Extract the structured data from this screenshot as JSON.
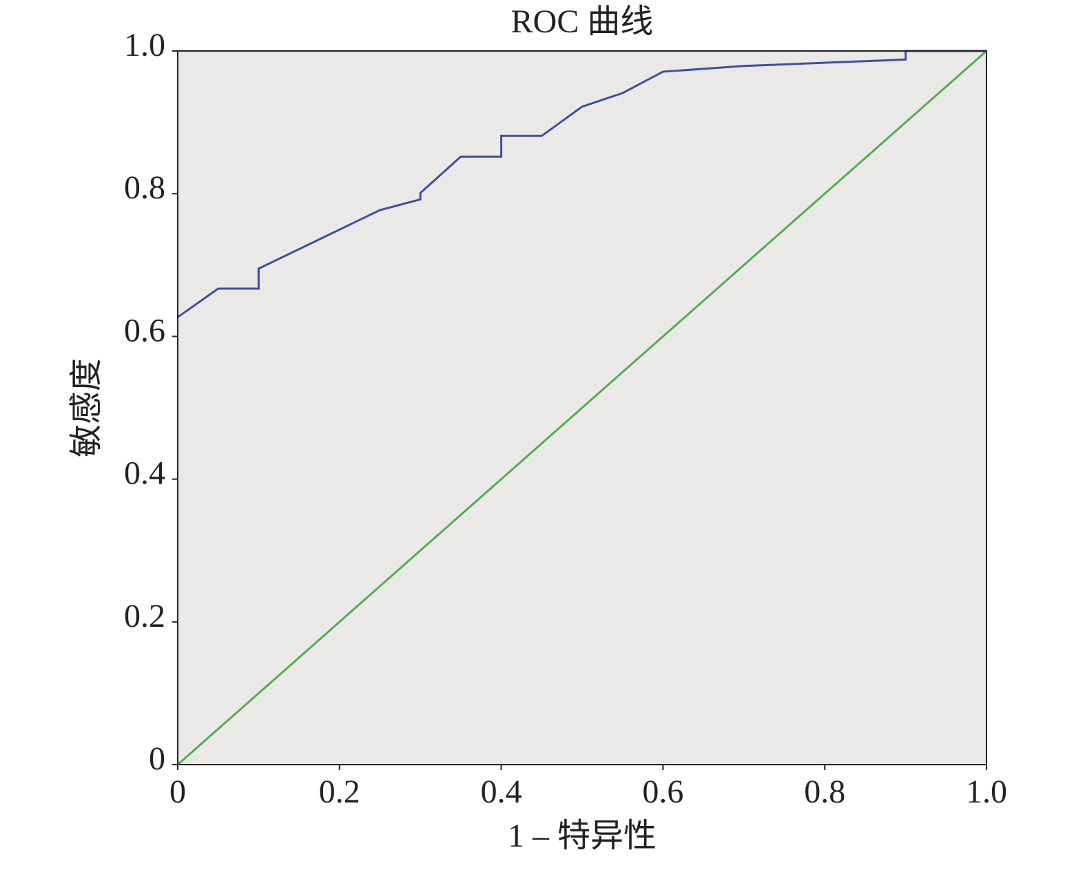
{
  "chart_data": {
    "type": "line",
    "title": "ROC 曲线",
    "x_label": "1 – 特异性",
    "y_label": "敏感度",
    "xlim": [
      0,
      1
    ],
    "ylim": [
      0,
      1
    ],
    "xticks": [
      0,
      0.2,
      0.4,
      0.6,
      0.8,
      {
        "value": 1,
        "label": "1.0"
      }
    ],
    "yticks": [
      0,
      0.2,
      0.4,
      0.6,
      0.8,
      {
        "value": 1,
        "label": "1.0"
      }
    ],
    "background": "#ebe9e7",
    "series": [
      {
        "color": "#3d4fa3",
        "x": [
          0,
          0.05,
          0.1,
          0.1,
          0.25,
          0.3,
          0.3,
          0.35,
          0.4,
          0.4,
          0.45,
          0.5,
          0.55,
          0.6,
          0.7,
          0.9,
          0.9,
          1
        ],
        "values": [
          0.627,
          0.667,
          0.667,
          0.695,
          0.777,
          0.792,
          0.801,
          0.852,
          0.852,
          0.881,
          0.881,
          0.922,
          0.941,
          0.971,
          0.979,
          0.988,
          1,
          1
        ]
      },
      {
        "color": "#4db04d",
        "x": [
          0,
          1
        ],
        "values": [
          0,
          1
        ]
      }
    ]
  }
}
